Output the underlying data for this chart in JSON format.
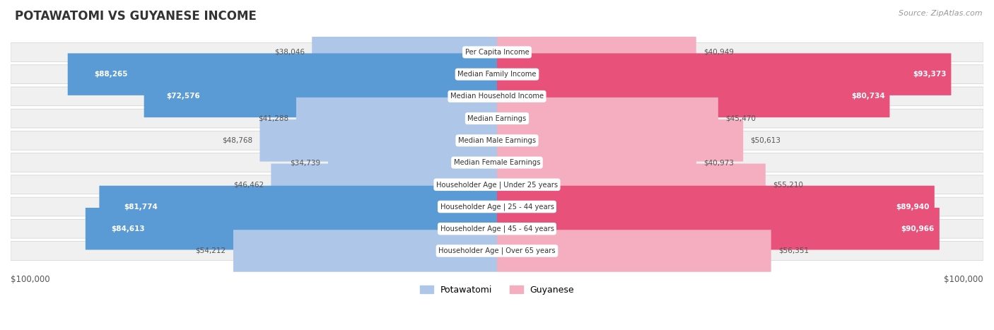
{
  "title": "POTAWATOMI VS GUYANESE INCOME",
  "source": "Source: ZipAtlas.com",
  "categories": [
    "Per Capita Income",
    "Median Family Income",
    "Median Household Income",
    "Median Earnings",
    "Median Male Earnings",
    "Median Female Earnings",
    "Householder Age | Under 25 years",
    "Householder Age | 25 - 44 years",
    "Householder Age | 45 - 64 years",
    "Householder Age | Over 65 years"
  ],
  "potawatomi": [
    38046,
    88265,
    72576,
    41288,
    48768,
    34739,
    46462,
    81774,
    84613,
    54212
  ],
  "guyanese": [
    40949,
    93373,
    80734,
    45470,
    50613,
    40973,
    55210,
    89940,
    90966,
    56351
  ],
  "max_val": 100000,
  "potawatomi_color_light": "#aec6e8",
  "potawatomi_color_dark": "#5b9bd5",
  "guyanese_color_light": "#f4aec0",
  "guyanese_color_dark": "#e8527a",
  "inside_threshold_pot": 60000,
  "inside_threshold_guy": 60000,
  "row_bg_color": "#f0f0f0",
  "row_border_color": "#d0d0d0",
  "title_color": "#333333",
  "source_color": "#999999",
  "outside_label_color": "#555555",
  "inside_label_color": "#ffffff",
  "legend_potawatomi": "Potawatomi",
  "legend_guyanese": "Guyanese"
}
